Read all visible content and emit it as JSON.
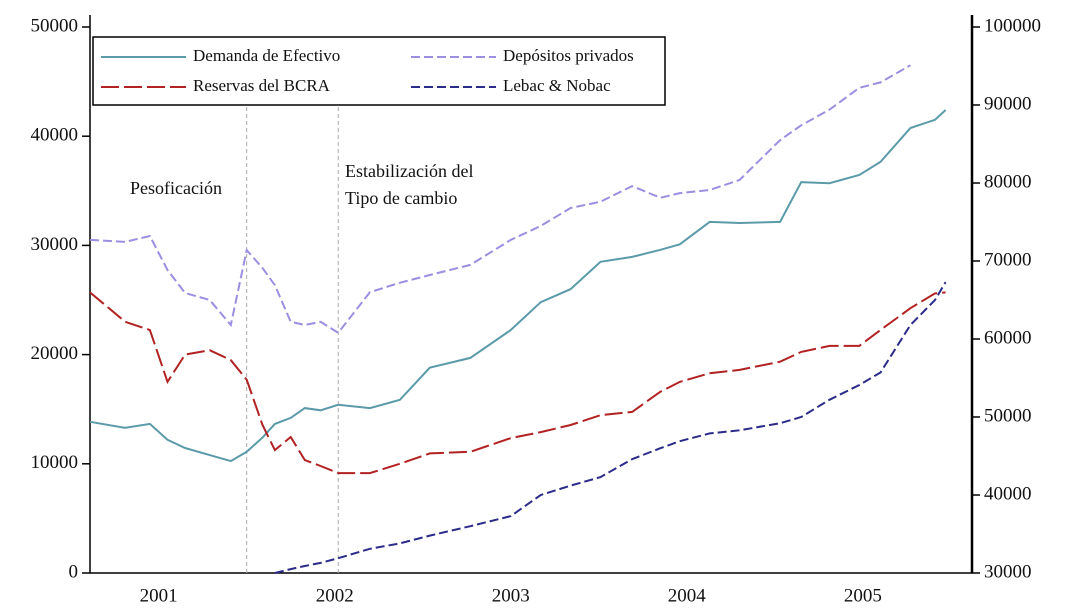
{
  "chart_data": {
    "type": "line",
    "x": [
      2001.11,
      2001.31,
      2001.45,
      2001.55,
      2001.65,
      2001.79,
      2001.91,
      2002.0,
      2002.09,
      2002.16,
      2002.25,
      2002.33,
      2002.42,
      2002.52,
      2002.7,
      2002.87,
      2003.04,
      2003.27,
      2003.5,
      2003.67,
      2003.84,
      2004.01,
      2004.19,
      2004.35,
      2004.46,
      2004.63,
      2004.8,
      2005.03,
      2005.15,
      2005.31,
      2005.48,
      2005.6,
      2005.77,
      2005.91,
      2005.97
    ],
    "series": [
      {
        "name": "Demanda de Efectivo",
        "color": "#5b9aa9",
        "dash": "solid",
        "axis": "y",
        "values": [
          13850,
          13300,
          13650,
          12200,
          11450,
          10800,
          10250,
          11100,
          12400,
          13650,
          14200,
          15100,
          14900,
          15400,
          15100,
          15850,
          18800,
          19700,
          22250,
          24800,
          26000,
          28500,
          28950,
          29600,
          30100,
          32150,
          32050,
          32150,
          35800,
          35700,
          36450,
          37650,
          40750,
          41500,
          42400
        ]
      },
      {
        "name": "Depósitos privados",
        "color": "#9a8fe0",
        "dash": "dashed",
        "axis": "y2",
        "values": [
          72700,
          72450,
          73200,
          68850,
          65900,
          65000,
          61800,
          71400,
          69100,
          66900,
          62200,
          61800,
          62200,
          60800,
          66000,
          67200,
          68200,
          69500,
          72700,
          74500,
          76800,
          77600,
          79600,
          78100,
          78700,
          79100,
          80400,
          85500,
          87400,
          89400,
          92200,
          92900,
          95100,
          null,
          null
        ]
      },
      {
        "name": "Reservas del BCRA",
        "color": "#b22222",
        "dash": "longdash",
        "axis": "y",
        "values": [
          25700,
          23000,
          22250,
          17500,
          20000,
          20400,
          19500,
          17700,
          13550,
          11250,
          12450,
          10350,
          9800,
          9150,
          9150,
          10000,
          10950,
          11100,
          12350,
          12900,
          13550,
          14450,
          14750,
          16600,
          17500,
          18300,
          18600,
          19350,
          20250,
          20800,
          20800,
          22250,
          24250,
          25600,
          25700
        ]
      },
      {
        "name": "Lebac & Nobac",
        "color": "#2b2b8a",
        "dash": "dashed",
        "axis": "y2",
        "values": [
          null,
          null,
          null,
          null,
          null,
          null,
          null,
          null,
          null,
          30000,
          30500,
          30900,
          31300,
          31900,
          33100,
          33800,
          34800,
          36000,
          37300,
          40000,
          41200,
          42300,
          44600,
          46000,
          46900,
          47900,
          48300,
          49200,
          50000,
          52200,
          54100,
          55700,
          61800,
          65000,
          67300
        ]
      }
    ],
    "xlim": [
      2001.11,
      2006.12
    ],
    "xticks": [
      {
        "value": 2001.5,
        "label": "2001"
      },
      {
        "value": 2002.5,
        "label": "2002"
      },
      {
        "value": 2003.5,
        "label": "2003"
      },
      {
        "value": 2004.5,
        "label": "2004"
      },
      {
        "value": 2005.5,
        "label": "2005"
      }
    ],
    "ylim": [
      0,
      50000
    ],
    "yticks": [
      0,
      10000,
      20000,
      30000,
      40000,
      50000
    ],
    "y2lim": [
      30000,
      100000
    ],
    "y2ticks": [
      30000,
      40000,
      50000,
      60000,
      70000,
      80000,
      90000,
      100000
    ],
    "vlines": [
      2002.0,
      2002.52
    ],
    "annotations": [
      [
        "Pesoficación"
      ],
      [
        "Estabilización del",
        "Tipo de cambio"
      ]
    ],
    "legend": "upper left",
    "grid": false
  }
}
